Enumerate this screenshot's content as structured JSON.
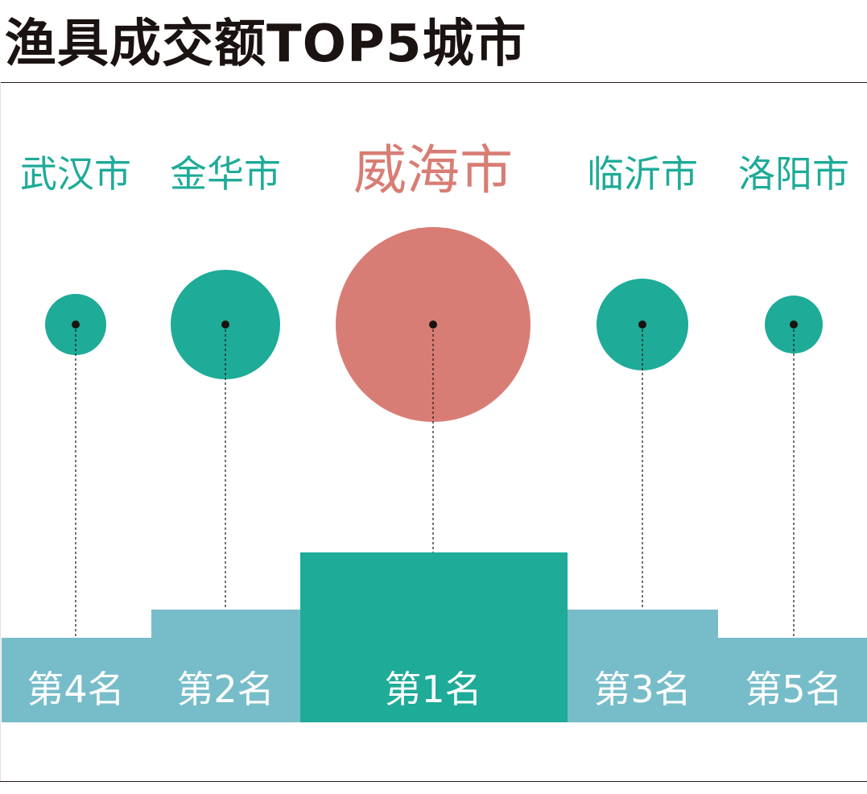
{
  "title": "渔具成交额TOP5城市",
  "colors": {
    "teal": "#1eab98",
    "coral": "#d87d75",
    "podium_side": "#77bdc9",
    "podium_center": "#1eab98",
    "dot": "#1a1311",
    "white": "#ffffff"
  },
  "chart_data": {
    "type": "bubble",
    "title": "渔具成交额TOP5城市",
    "order": [
      "武汉市",
      "金华市",
      "威海市",
      "临沂市",
      "洛阳市"
    ],
    "entries": [
      {
        "city": "武汉市",
        "rank": 4,
        "rank_label": "第4名",
        "highlight": false
      },
      {
        "city": "金华市",
        "rank": 2,
        "rank_label": "第2名",
        "highlight": false
      },
      {
        "city": "威海市",
        "rank": 1,
        "rank_label": "第1名",
        "highlight": true
      },
      {
        "city": "临沂市",
        "rank": 3,
        "rank_label": "第3名",
        "highlight": false
      },
      {
        "city": "洛阳市",
        "rank": 5,
        "rank_label": "第5名",
        "highlight": false
      }
    ]
  }
}
